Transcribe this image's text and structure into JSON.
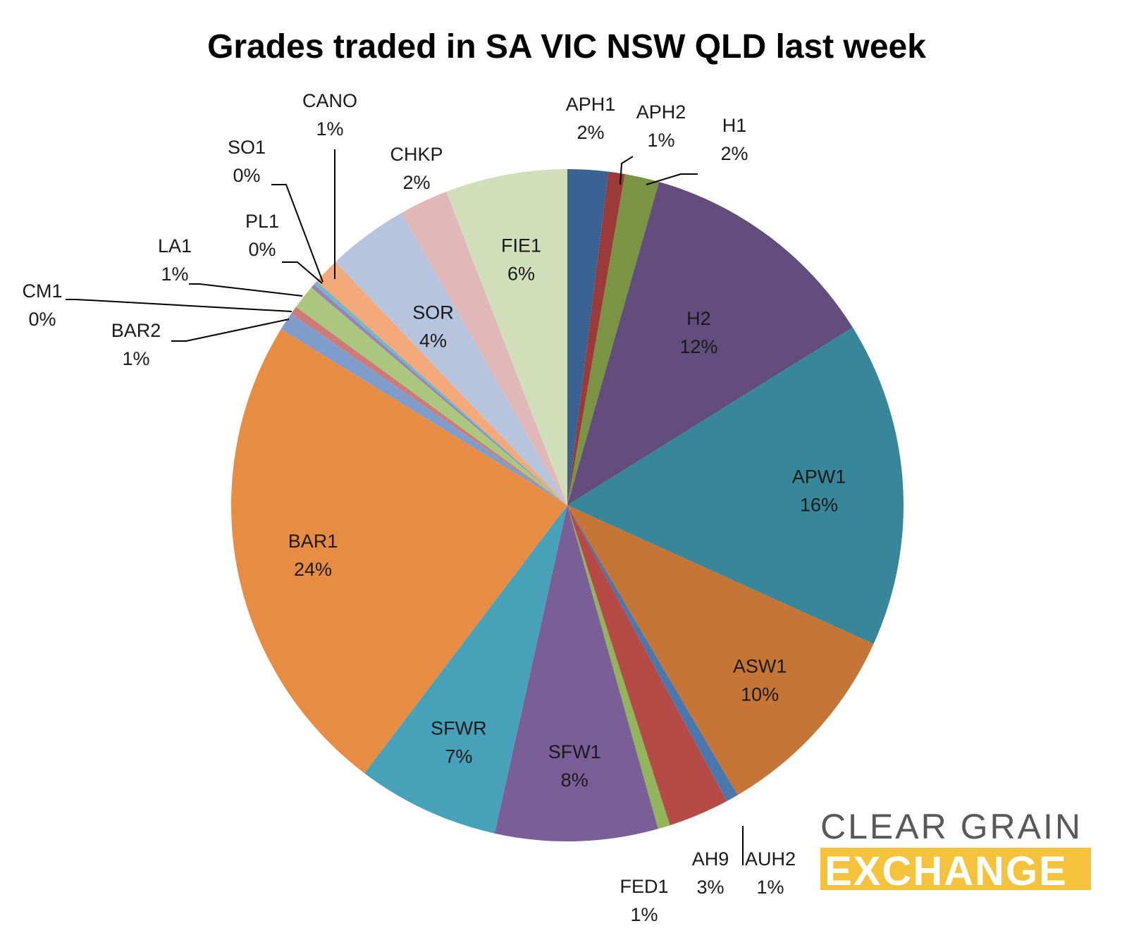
{
  "chart_data": {
    "type": "pie",
    "title": "Grades traded in SA VIC NSW QLD last week",
    "start_angle_deg": 0,
    "direction": "clockwise",
    "slices": [
      {
        "label": "APH1",
        "value": 2,
        "pct_label": "2%",
        "color": "#3A6293"
      },
      {
        "label": "APH2",
        "value": 0.8,
        "pct_label": "1%",
        "color": "#9B3A38"
      },
      {
        "label": "H1",
        "value": 1.7,
        "pct_label": "2%",
        "color": "#7A9444"
      },
      {
        "label": "H2",
        "value": 12,
        "pct_label": "12%",
        "color": "#624D7C"
      },
      {
        "label": "APW1",
        "value": 16,
        "pct_label": "16%",
        "color": "#37869A"
      },
      {
        "label": "ASW1",
        "value": 10,
        "pct_label": "10%",
        "color": "#C57535"
      },
      {
        "label": "AUH2",
        "value": 0.6,
        "pct_label": "1%",
        "color": "#4A78AE"
      },
      {
        "label": "AH9",
        "value": 3,
        "pct_label": "3%",
        "color": "#B64A47"
      },
      {
        "label": "FED1",
        "value": 0.6,
        "pct_label": "1%",
        "color": "#92B45A"
      },
      {
        "label": "SFW1",
        "value": 8,
        "pct_label": "8%",
        "color": "#7A5E98"
      },
      {
        "label": "SFWR",
        "value": 7,
        "pct_label": "7%",
        "color": "#47A1B8"
      },
      {
        "label": "BAR1",
        "value": 24,
        "pct_label": "24%",
        "color": "#E68D43"
      },
      {
        "label": "BAR2",
        "value": 0.9,
        "pct_label": "1%",
        "color": "#7F9CCB"
      },
      {
        "label": "CM1",
        "value": 0.4,
        "pct_label": "0%",
        "color": "#CC7B78"
      },
      {
        "label": "LA1",
        "value": 1.2,
        "pct_label": "1%",
        "color": "#ABC67D"
      },
      {
        "label": "PL1",
        "value": 0.2,
        "pct_label": "0%",
        "color": "#9784B4"
      },
      {
        "label": "SO1",
        "value": 0.2,
        "pct_label": "0%",
        "color": "#74B7C8"
      },
      {
        "label": "CANO",
        "value": 1.3,
        "pct_label": "1%",
        "color": "#F5A97A"
      },
      {
        "label": "SOR",
        "value": 4,
        "pct_label": "4%",
        "color": "#B6C4DE"
      },
      {
        "label": "CHKP",
        "value": 2.4,
        "pct_label": "2%",
        "color": "#DFB8B7"
      },
      {
        "label": "FIE1",
        "value": 6,
        "pct_label": "6%",
        "color": "#D1DEBA"
      }
    ]
  },
  "logo": {
    "line1": "CLEAR GRAIN",
    "line2": "EXCHANGE",
    "line2_bg": "#F5C33B"
  }
}
